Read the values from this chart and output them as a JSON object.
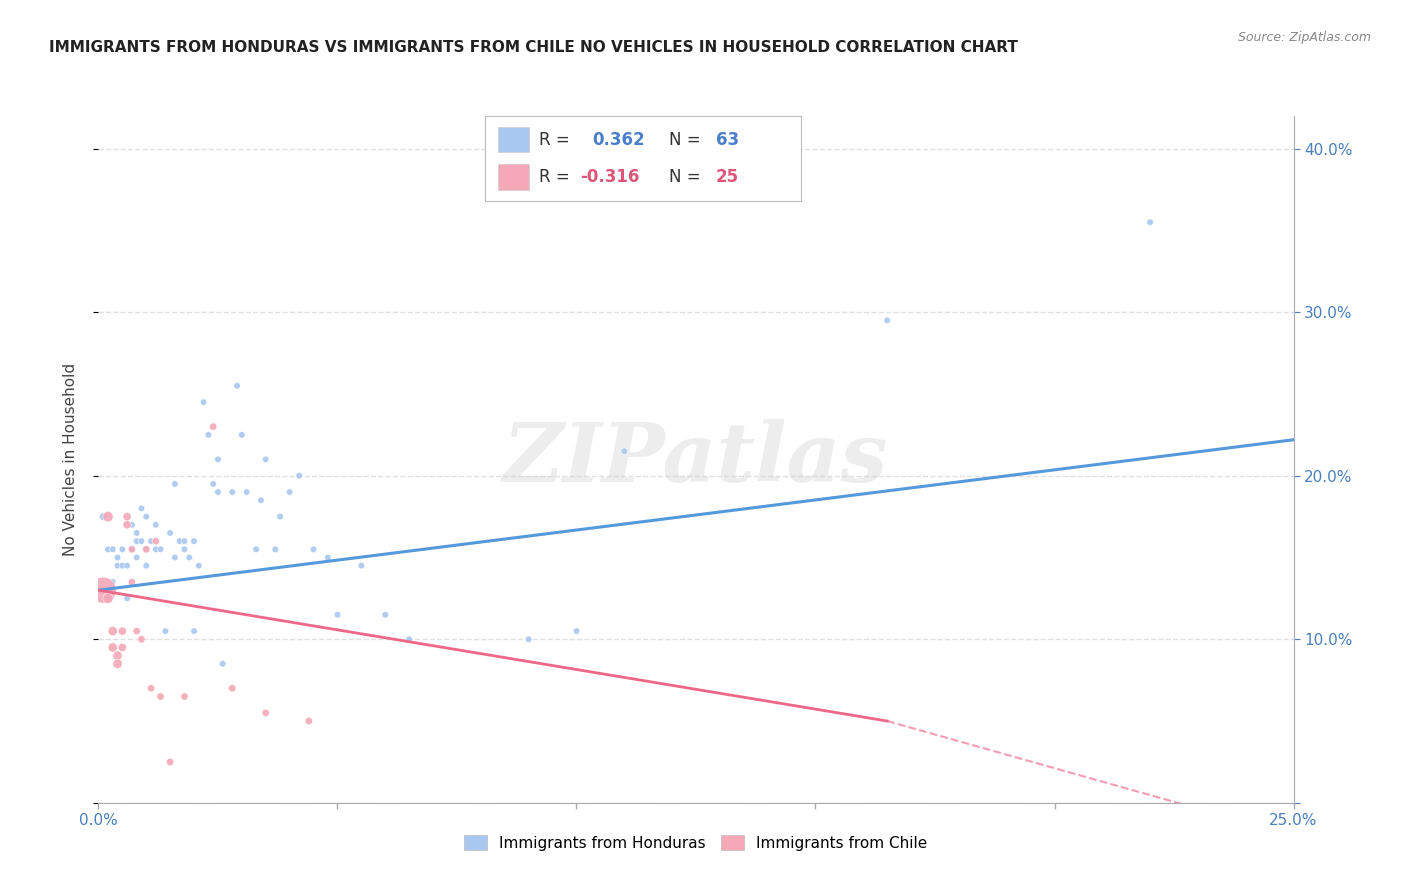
{
  "title": "IMMIGRANTS FROM HONDURAS VS IMMIGRANTS FROM CHILE NO VEHICLES IN HOUSEHOLD CORRELATION CHART",
  "source": "Source: ZipAtlas.com",
  "ylabel": "No Vehicles in Household",
  "xlim": [
    0.0,
    0.25
  ],
  "ylim": [
    0.0,
    0.42
  ],
  "xticks": [
    0.0,
    0.05,
    0.1,
    0.15,
    0.2,
    0.25
  ],
  "yticks": [
    0.0,
    0.1,
    0.2,
    0.3,
    0.4
  ],
  "background_color": "#ffffff",
  "grid_color": "#e0e0e0",
  "blue_color": "#a8c8f0",
  "pink_color": "#f4a8b8",
  "blue_line_color": "#5599dd",
  "pink_line_color": "#ee6688",
  "watermark": "ZIPatlas",
  "r_honduras": 0.362,
  "r_chile": -0.316,
  "n_honduras": 63,
  "n_chile": 25,
  "honduras_line": [
    0.0,
    0.13,
    0.25,
    0.222
  ],
  "chile_line_solid": [
    0.0,
    0.13,
    0.165,
    0.05
  ],
  "chile_line_dash": [
    0.165,
    0.05,
    0.25,
    -0.02
  ],
  "honduras_points": [
    [
      0.001,
      0.175
    ],
    [
      0.002,
      0.155
    ],
    [
      0.003,
      0.135
    ],
    [
      0.003,
      0.155
    ],
    [
      0.004,
      0.15
    ],
    [
      0.004,
      0.145
    ],
    [
      0.005,
      0.155
    ],
    [
      0.005,
      0.145
    ],
    [
      0.006,
      0.125
    ],
    [
      0.006,
      0.145
    ],
    [
      0.007,
      0.17
    ],
    [
      0.007,
      0.155
    ],
    [
      0.008,
      0.165
    ],
    [
      0.008,
      0.16
    ],
    [
      0.008,
      0.15
    ],
    [
      0.009,
      0.16
    ],
    [
      0.009,
      0.18
    ],
    [
      0.01,
      0.175
    ],
    [
      0.01,
      0.155
    ],
    [
      0.01,
      0.145
    ],
    [
      0.011,
      0.16
    ],
    [
      0.012,
      0.155
    ],
    [
      0.012,
      0.17
    ],
    [
      0.013,
      0.155
    ],
    [
      0.014,
      0.105
    ],
    [
      0.015,
      0.165
    ],
    [
      0.016,
      0.15
    ],
    [
      0.016,
      0.195
    ],
    [
      0.017,
      0.16
    ],
    [
      0.018,
      0.16
    ],
    [
      0.018,
      0.155
    ],
    [
      0.019,
      0.15
    ],
    [
      0.02,
      0.16
    ],
    [
      0.02,
      0.105
    ],
    [
      0.021,
      0.145
    ],
    [
      0.022,
      0.245
    ],
    [
      0.023,
      0.225
    ],
    [
      0.024,
      0.195
    ],
    [
      0.025,
      0.21
    ],
    [
      0.025,
      0.19
    ],
    [
      0.026,
      0.085
    ],
    [
      0.028,
      0.19
    ],
    [
      0.029,
      0.255
    ],
    [
      0.03,
      0.225
    ],
    [
      0.031,
      0.19
    ],
    [
      0.033,
      0.155
    ],
    [
      0.034,
      0.185
    ],
    [
      0.035,
      0.21
    ],
    [
      0.037,
      0.155
    ],
    [
      0.038,
      0.175
    ],
    [
      0.04,
      0.19
    ],
    [
      0.042,
      0.2
    ],
    [
      0.045,
      0.155
    ],
    [
      0.048,
      0.15
    ],
    [
      0.05,
      0.115
    ],
    [
      0.055,
      0.145
    ],
    [
      0.06,
      0.115
    ],
    [
      0.065,
      0.1
    ],
    [
      0.09,
      0.1
    ],
    [
      0.1,
      0.105
    ],
    [
      0.11,
      0.215
    ],
    [
      0.165,
      0.295
    ],
    [
      0.22,
      0.355
    ]
  ],
  "honduras_sizes": [
    30,
    22,
    22,
    22,
    22,
    22,
    22,
    22,
    22,
    22,
    22,
    22,
    22,
    22,
    22,
    22,
    22,
    22,
    22,
    22,
    22,
    22,
    22,
    22,
    22,
    22,
    22,
    22,
    22,
    22,
    22,
    22,
    22,
    22,
    22,
    22,
    22,
    22,
    22,
    22,
    22,
    22,
    22,
    22,
    22,
    22,
    22,
    22,
    22,
    22,
    22,
    22,
    22,
    22,
    22,
    22,
    22,
    22,
    22,
    22,
    22,
    22,
    22
  ],
  "chile_points": [
    [
      0.001,
      0.13
    ],
    [
      0.002,
      0.125
    ],
    [
      0.002,
      0.175
    ],
    [
      0.003,
      0.095
    ],
    [
      0.003,
      0.105
    ],
    [
      0.004,
      0.09
    ],
    [
      0.004,
      0.085
    ],
    [
      0.005,
      0.095
    ],
    [
      0.005,
      0.105
    ],
    [
      0.006,
      0.17
    ],
    [
      0.006,
      0.175
    ],
    [
      0.007,
      0.155
    ],
    [
      0.007,
      0.135
    ],
    [
      0.008,
      0.105
    ],
    [
      0.009,
      0.1
    ],
    [
      0.01,
      0.155
    ],
    [
      0.011,
      0.07
    ],
    [
      0.012,
      0.16
    ],
    [
      0.013,
      0.065
    ],
    [
      0.015,
      0.025
    ],
    [
      0.018,
      0.065
    ],
    [
      0.024,
      0.23
    ],
    [
      0.028,
      0.07
    ],
    [
      0.035,
      0.055
    ],
    [
      0.044,
      0.05
    ]
  ],
  "chile_sizes": [
    350,
    55,
    55,
    45,
    45,
    45,
    45,
    35,
    35,
    35,
    35,
    28,
    28,
    28,
    28,
    28,
    28,
    28,
    28,
    28,
    28,
    28,
    28,
    28,
    28
  ]
}
